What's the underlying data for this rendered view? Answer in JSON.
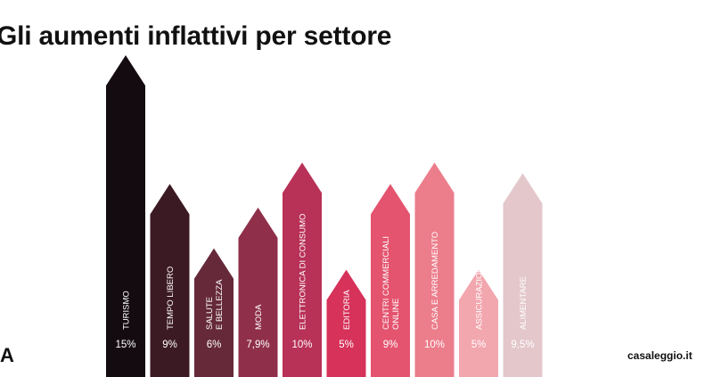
{
  "title": "Gli aumenti inflattivi per settore",
  "corner_letter": "A",
  "brand": "casaleggio.it",
  "chart_data": {
    "type": "bar",
    "title": "Gli aumenti inflattivi per settore",
    "xlabel": "",
    "ylabel": "",
    "ylim": [
      0,
      15
    ],
    "grid": false,
    "categories": [
      [
        "TURISMO"
      ],
      [
        "TEMPO LIBERO"
      ],
      [
        "SALUTE",
        "E BELLEZZA"
      ],
      [
        "MODA"
      ],
      [
        "ELETTRONICA DI CONSUMO"
      ],
      [
        "EDITORIA"
      ],
      [
        "CENTRI COMMERCIALI",
        "ONLINE"
      ],
      [
        "CASA E ARREDAMENTO"
      ],
      [
        "ASSICURAZIONI"
      ],
      [
        "ALIMENTARE"
      ]
    ],
    "values": [
      15,
      9,
      6,
      7.9,
      10,
      5,
      9,
      10,
      5,
      9.5
    ],
    "value_labels": [
      "15%",
      "9%",
      "6%",
      "7,9%",
      "10%",
      "5%",
      "9%",
      "10%",
      "5%",
      "9,5%"
    ],
    "colors": [
      "#140b10",
      "#3c1a23",
      "#65293a",
      "#8f2f4a",
      "#b83156",
      "#d6325a",
      "#e4546f",
      "#ec7d8b",
      "#f2a6ae",
      "#e3c7cb"
    ]
  }
}
